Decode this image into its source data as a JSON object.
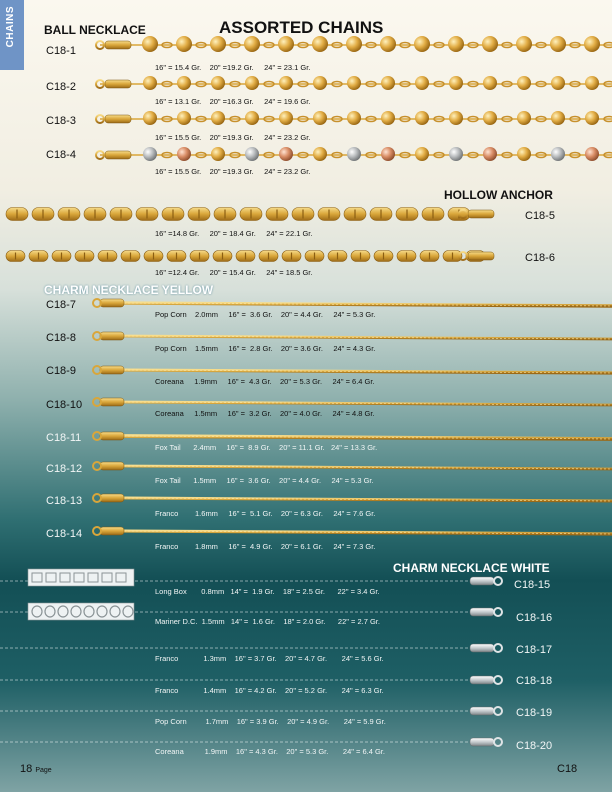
{
  "side_tab": "CHAINS",
  "title": "ASSORTED CHAINS",
  "sections": {
    "ball": "BALL NECKLACE",
    "anchor": "HOLLOW ANCHOR",
    "yellow": "CHARM NECKLACE YELLOW",
    "white": "CHARM NECKLACE WHITE"
  },
  "items": [
    {
      "code": "C18-1",
      "spec": "16\" = 15.4 Gr.    20\" =19.2 Gr.     24\" = 23.1 Gr."
    },
    {
      "code": "C18-2",
      "spec": "16\" = 13.1 Gr.    20\" =16.3 Gr.     24\" = 19.6 Gr."
    },
    {
      "code": "C18-3",
      "spec": "16\" = 15.5 Gr.    20\" =19.3 Gr.     24\" = 23.2 Gr."
    },
    {
      "code": "C18-4",
      "spec": "16\" = 15.5 Gr.    20\" =19.3 Gr.     24\" = 23.2 Gr."
    },
    {
      "code": "C18-5",
      "spec": "16\" =14.8 Gr.     20\" = 18.4 Gr.     24\" = 22.1 Gr."
    },
    {
      "code": "C18-6",
      "spec": "16\" =12.4 Gr.     20\" = 15.4 Gr.     24\" = 18.5 Gr."
    },
    {
      "code": "C18-7",
      "spec": "Pop Corn    2.0mm     16\" =  3.6 Gr.    20\" = 4.4 Gr.     24\" = 5.3 Gr."
    },
    {
      "code": "C18-8",
      "spec": "Pop Corn    1.5mm     16\" =  2.8 Gr.    20\" = 3.6 Gr.     24\" = 4.3 Gr."
    },
    {
      "code": "C18-9",
      "spec": "Coreana     1.9mm     16\" =  4.3 Gr.    20\" = 5.3 Gr.     24\" = 6.4 Gr."
    },
    {
      "code": "C18-10",
      "spec": "Coreana     1.5mm     16\" =  3.2 Gr.    20\" = 4.0 Gr.     24\" = 4.8 Gr."
    },
    {
      "code": "C18-11",
      "spec": "Fox Tail      2.4mm     16\" =  8.9 Gr.    20\" = 11.1 Gr.   24\" = 13.3 Gr."
    },
    {
      "code": "C18-12",
      "spec": "Fox Tail      1.5mm     16\" =  3.6 Gr.    20\" = 4.4 Gr.     24\" = 5.3 Gr."
    },
    {
      "code": "C18-13",
      "spec": "Franco        1.6mm     16\" =  5.1 Gr.    20\" = 6.3 Gr.     24\" = 7.6 Gr."
    },
    {
      "code": "C18-14",
      "spec": "Franco        1.8mm     16\" =  4.9 Gr.    20\" = 6.1 Gr.     24\" = 7.3 Gr."
    },
    {
      "code": "C18-15",
      "spec": "Long Box       0.8mm   14\" =  1.9 Gr.    18\" = 2.5 Gr.      22\" = 3.4 Gr."
    },
    {
      "code": "C18-16",
      "spec": "Mariner D.C.  1.5mm   14\" =  1.6 Gr.    18\" = 2.0 Gr.      22\" = 2.7 Gr."
    },
    {
      "code": "C18-17",
      "spec": "Franco            1.3mm    16\" = 3.7 Gr.    20\" = 4.7 Gr.       24\" = 5.6 Gr."
    },
    {
      "code": "C18-18",
      "spec": "Franco            1.4mm    16\" = 4.2 Gr.    20\" = 5.2 Gr.       24\" = 6.3 Gr."
    },
    {
      "code": "C18-19",
      "spec": "Pop Corn         1.7mm    16\" = 3.9 Gr.    20\" = 4.9 Gr.       24\" = 5.9 Gr."
    },
    {
      "code": "C18-20",
      "spec": "Coreana          1.9mm    16\" = 4.3 Gr.    20\" = 5.3 Gr.       24\" = 6.4 Gr."
    }
  ],
  "footer": {
    "page_num": "18",
    "page_word": "Page",
    "code": "C18"
  },
  "colors": {
    "gold": "#d9a63a",
    "gold_light": "#f3d37a",
    "silver": "#cfd6da",
    "accent": "#6f94c6"
  }
}
